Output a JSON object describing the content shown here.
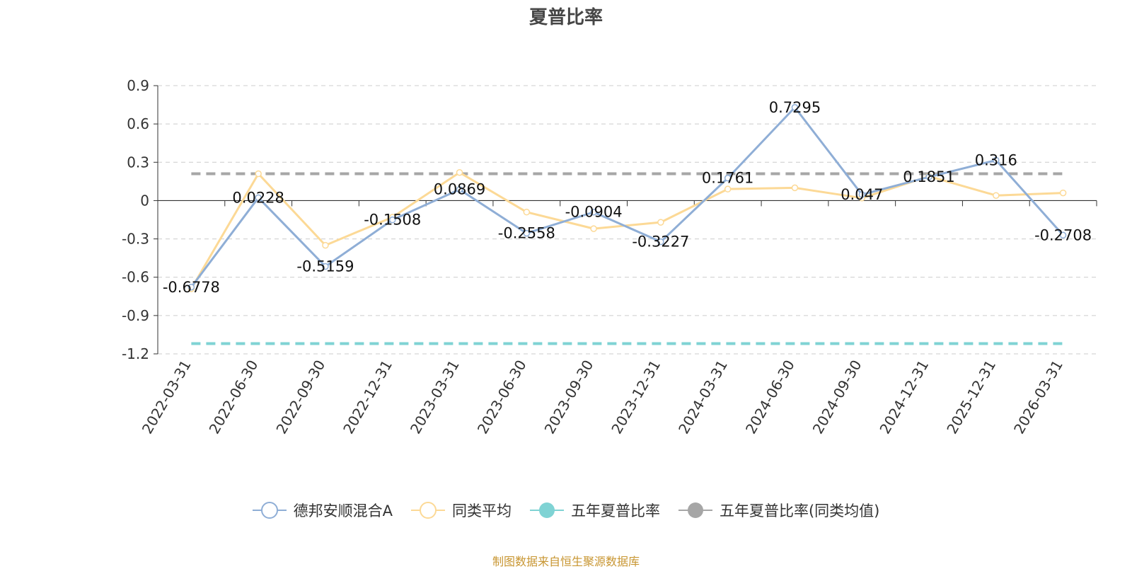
{
  "chart_data": {
    "type": "line",
    "title": "夏普比率",
    "categories": [
      "2022-03-31",
      "2022-06-30",
      "2022-09-30",
      "2022-12-31",
      "2023-03-31",
      "2023-06-30",
      "2023-09-30",
      "2023-12-31",
      "2024-03-31",
      "2024-06-30",
      "2024-09-30",
      "2024-12-31",
      "2025-12-31",
      "2026-03-31"
    ],
    "ylim": [
      -1.2,
      0.9
    ],
    "yticks": [
      "0.9",
      "0.6",
      "0.3",
      "0",
      "-0.3",
      "-0.6",
      "-0.9",
      "-1.2"
    ],
    "grid": true,
    "legend_position": "bottom",
    "series": [
      {
        "name": "德邦安顺混合A",
        "color": "#8faed6",
        "values": [
          -0.6778,
          0.0228,
          -0.5159,
          -0.1508,
          0.0869,
          -0.2558,
          -0.0904,
          -0.3227,
          0.1761,
          0.7295,
          0.047,
          0.1851,
          0.316,
          -0.2708
        ],
        "labels": [
          "-0.6778",
          "0.0228",
          "-0.5159",
          "-0.1508",
          "0.0869",
          "-0.2558",
          "-0.0904",
          "-0.3227",
          "0.1761",
          "0.7295",
          "0.047",
          "0.1851",
          "0.316",
          "-0.2708"
        ]
      },
      {
        "name": "同类平均",
        "color": "#fcd996",
        "values": [
          -0.69,
          0.21,
          -0.35,
          -0.13,
          0.22,
          -0.09,
          -0.22,
          -0.17,
          0.09,
          0.1,
          0.02,
          0.19,
          0.04,
          0.06
        ]
      },
      {
        "name": "五年夏普比率",
        "color": "#7fd3d4",
        "constant": -1.12
      },
      {
        "name": "五年夏普比率(同类均值)",
        "color": "#a6a6a6",
        "constant": 0.21
      }
    ]
  },
  "footer": "制图数据来自恒生聚源数据库"
}
